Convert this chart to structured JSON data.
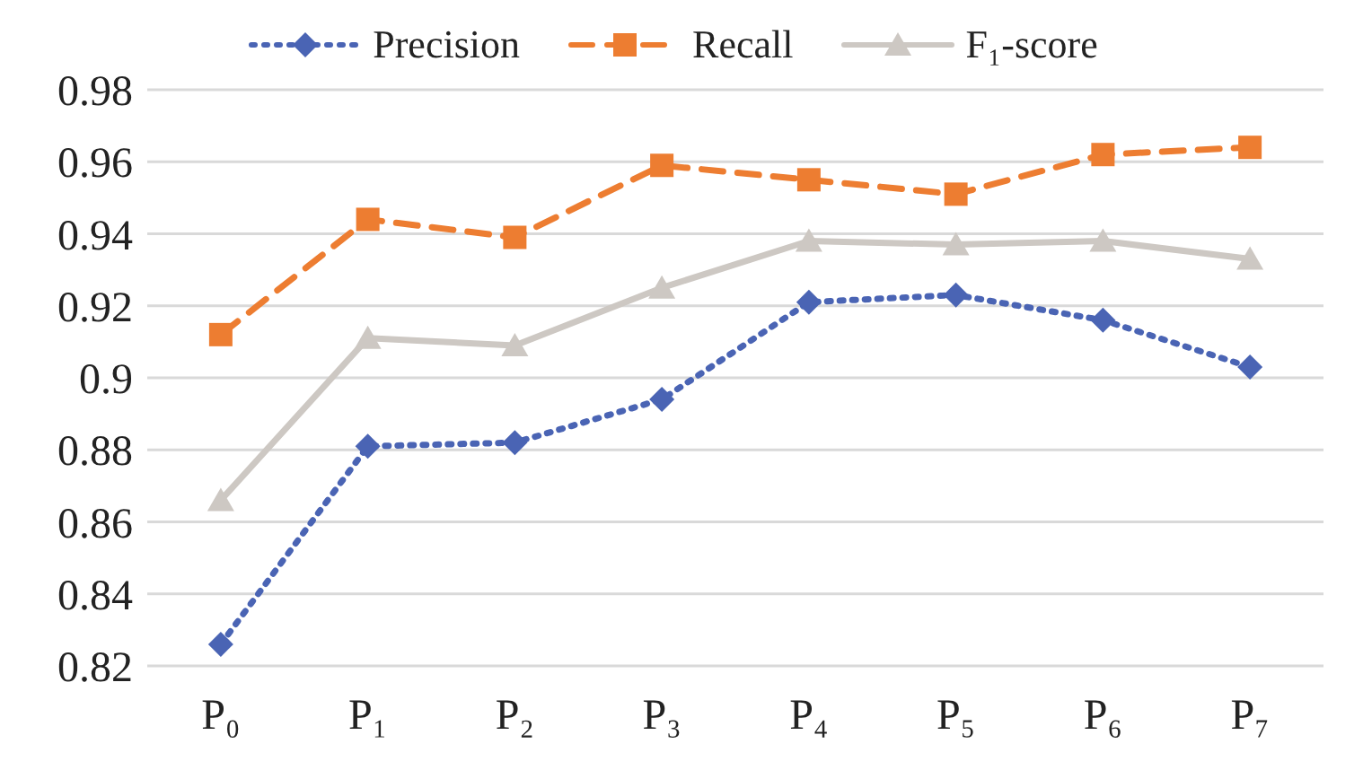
{
  "chart_data": {
    "type": "line",
    "categories": [
      "P₀",
      "P₁",
      "P₂",
      "P₃",
      "P₄",
      "P₅",
      "P₆",
      "P₇"
    ],
    "series": [
      {
        "name": "Precision",
        "color": "#4a64b4",
        "marker": "diamond",
        "line_style": "dotted",
        "values": [
          0.826,
          0.881,
          0.882,
          0.894,
          0.921,
          0.923,
          0.916,
          0.903
        ]
      },
      {
        "name": "Recall",
        "color": "#ed7d31",
        "marker": "square",
        "line_style": "dashed",
        "values": [
          0.912,
          0.944,
          0.939,
          0.959,
          0.955,
          0.951,
          0.962,
          0.964
        ]
      },
      {
        "name": "F₁-score",
        "color": "#cdc8c3",
        "marker": "triangle",
        "line_style": "solid",
        "values": [
          0.866,
          0.911,
          0.909,
          0.925,
          0.938,
          0.937,
          0.938,
          0.933
        ]
      }
    ],
    "ylim": [
      0.82,
      0.98
    ],
    "yticks": [
      0.82,
      0.84,
      0.86,
      0.88,
      0.9,
      0.92,
      0.94,
      0.96,
      0.98
    ],
    "grid": "y",
    "legend": "top"
  }
}
